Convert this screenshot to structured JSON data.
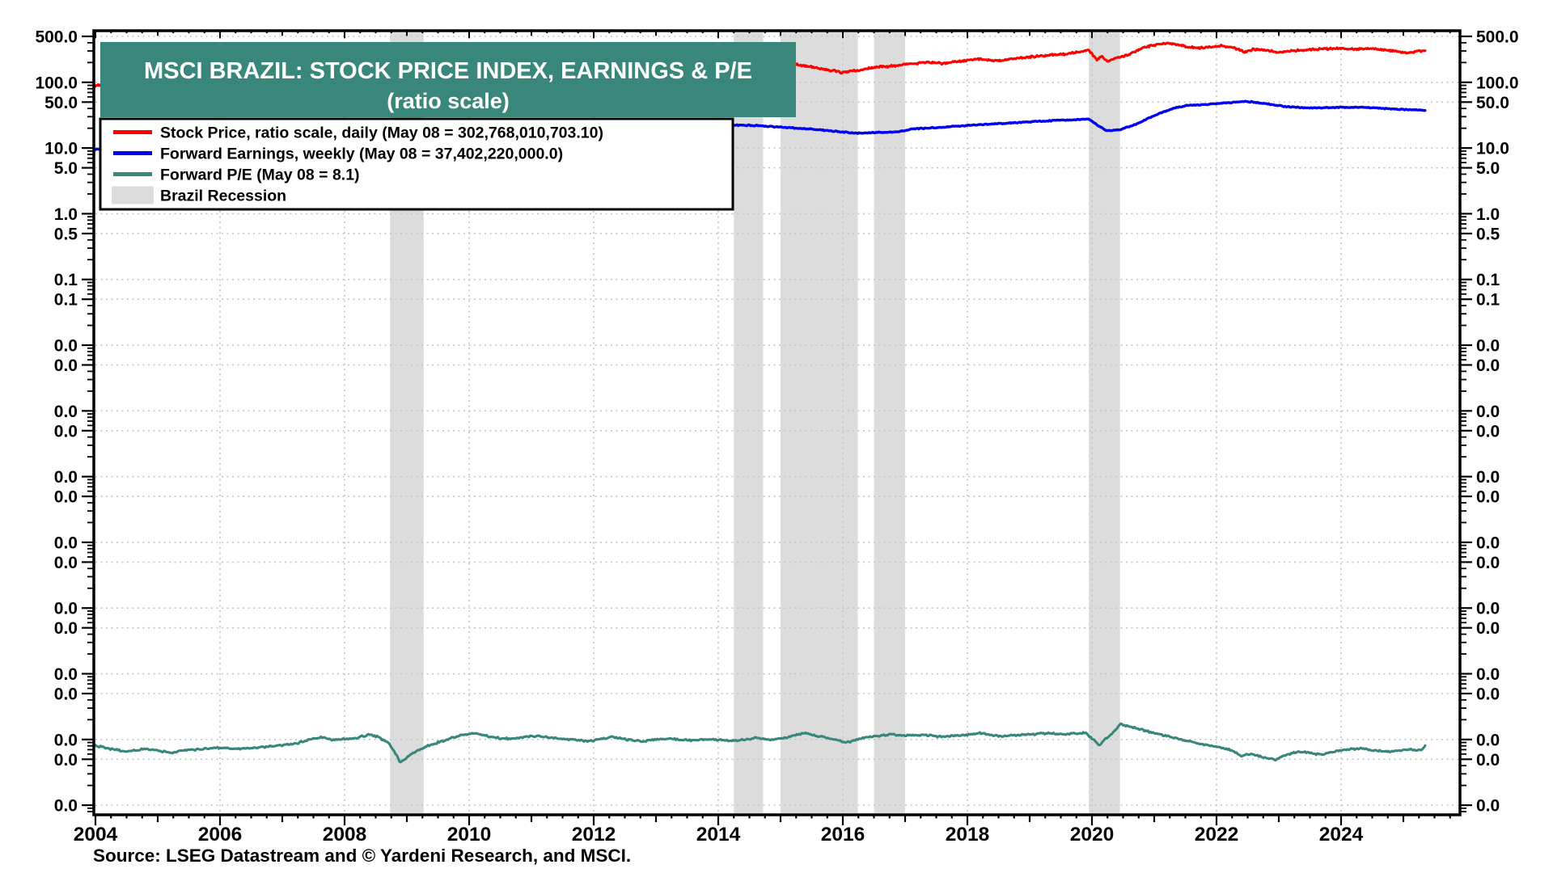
{
  "title": {
    "line1": "MSCI BRAZIL: STOCK PRICE INDEX, EARNINGS & P/E",
    "line2": "(ratio scale)"
  },
  "source_note": "Source: LSEG Datastream and © Yardeni Research, and MSCI.",
  "colors": {
    "title_bg": "#38877A",
    "title_text": "#FFFFFF",
    "stock_price": "#FF0000",
    "forward_earnings": "#0000EE",
    "forward_pe": "#38877A",
    "recession_band": "#DCDCDC",
    "gridline": "#C5C5C5",
    "frame": "#000000",
    "legend_bg": "#FFFFFF",
    "text": "#000000"
  },
  "legend": {
    "items": [
      {
        "type": "line",
        "color_key": "stock_price",
        "label": "Stock Price, ratio scale, daily (May 08 = 302,768,010,703.10)"
      },
      {
        "type": "line",
        "color_key": "forward_earnings",
        "label": "Forward Earnings, weekly (May 08 = 37,402,220,000.0)"
      },
      {
        "type": "line",
        "color_key": "forward_pe",
        "label": "Forward P/E (May 08 = 8.1)"
      },
      {
        "type": "band",
        "color_key": "recession_band",
        "label": "Brazil Recession"
      }
    ]
  },
  "chart_data": {
    "type": "line",
    "y_scale": "log",
    "grid": "dotted",
    "legend_position": "top-left",
    "x_range": [
      2004,
      2025.9
    ],
    "x_major_ticks": [
      "2004",
      "2006",
      "2008",
      "2010",
      "2012",
      "2014",
      "2016",
      "2018",
      "2020",
      "2022",
      "2024"
    ],
    "x_minor_tick_step": 0.25,
    "y_ticks": [
      {
        "value": 500,
        "label": "500.0"
      },
      {
        "value": 100,
        "label": "100.0"
      },
      {
        "value": 50,
        "label": "50.0"
      },
      {
        "value": 10,
        "label": "10.0"
      },
      {
        "value": 5,
        "label": "5.0"
      },
      {
        "value": 1,
        "label": "1.0"
      },
      {
        "value": 0.5,
        "label": "0.5"
      },
      {
        "value": 0.1,
        "label": "0.1"
      },
      {
        "value": 0.05,
        "label": "0.1"
      },
      {
        "value": 0.01,
        "label": "0.0"
      },
      {
        "value": 0.005,
        "label": "0.0"
      },
      {
        "value": 0.001,
        "label": "0.0"
      },
      {
        "value": 0.0005,
        "label": "0.0"
      },
      {
        "value": 0.0001,
        "label": "0.0"
      },
      {
        "value": 5e-05,
        "label": "0.0"
      },
      {
        "value": 1e-05,
        "label": "0.0"
      },
      {
        "value": 5e-06,
        "label": "0.0"
      },
      {
        "value": 1e-06,
        "label": "0.0"
      },
      {
        "value": 5e-07,
        "label": "0.0"
      },
      {
        "value": 1e-07,
        "label": "0.0"
      },
      {
        "value": 5e-08,
        "label": "0.0"
      },
      {
        "value": 1e-08,
        "label": "0.0"
      },
      {
        "value": 5e-09,
        "label": "0.0"
      },
      {
        "value": 1e-09,
        "label": "0.0"
      }
    ],
    "recession_bands": [
      [
        2008.73,
        2009.27
      ],
      [
        2014.25,
        2014.72
      ],
      [
        2015.0,
        2016.24
      ],
      [
        2016.5,
        2017.0
      ],
      [
        2019.95,
        2020.45
      ]
    ],
    "series": [
      {
        "name": "Stock Price",
        "key": "stock_price",
        "frequency": "daily",
        "last_date": "May 08",
        "last_value": 302768010703.1,
        "plot_multiplier": 1,
        "noise": 0.022,
        "step": 0.015,
        "points": [
          [
            2004.0,
            90
          ],
          [
            2004.5,
            100
          ],
          [
            2005.0,
            115
          ],
          [
            2005.5,
            135
          ],
          [
            2006.0,
            150
          ],
          [
            2006.5,
            165
          ],
          [
            2007.0,
            200
          ],
          [
            2007.5,
            240
          ],
          [
            2008.0,
            250
          ],
          [
            2008.4,
            270
          ],
          [
            2008.7,
            160
          ],
          [
            2008.85,
            88
          ],
          [
            2009.0,
            110
          ],
          [
            2009.5,
            170
          ],
          [
            2010.0,
            220
          ],
          [
            2010.5,
            230
          ],
          [
            2011.0,
            220
          ],
          [
            2011.5,
            195
          ],
          [
            2012.0,
            190
          ],
          [
            2012.5,
            180
          ],
          [
            2013.0,
            185
          ],
          [
            2013.5,
            175
          ],
          [
            2014.0,
            185
          ],
          [
            2014.5,
            175
          ],
          [
            2015.0,
            190
          ],
          [
            2015.31,
            185
          ],
          [
            2015.5,
            170
          ],
          [
            2015.8,
            152
          ],
          [
            2016.0,
            140
          ],
          [
            2016.2,
            150
          ],
          [
            2016.5,
            168
          ],
          [
            2016.8,
            178
          ],
          [
            2017.0,
            188
          ],
          [
            2017.3,
            200
          ],
          [
            2017.6,
            194
          ],
          [
            2018.0,
            215
          ],
          [
            2018.2,
            228
          ],
          [
            2018.5,
            212
          ],
          [
            2018.8,
            232
          ],
          [
            2019.0,
            243
          ],
          [
            2019.3,
            258
          ],
          [
            2019.6,
            272
          ],
          [
            2019.95,
            310
          ],
          [
            2020.08,
            218
          ],
          [
            2020.15,
            248
          ],
          [
            2020.25,
            212
          ],
          [
            2020.4,
            235
          ],
          [
            2020.6,
            262
          ],
          [
            2020.8,
            330
          ],
          [
            2021.0,
            368
          ],
          [
            2021.2,
            398
          ],
          [
            2021.35,
            378
          ],
          [
            2021.5,
            350
          ],
          [
            2021.7,
            330
          ],
          [
            2021.9,
            345
          ],
          [
            2022.1,
            360
          ],
          [
            2022.3,
            330
          ],
          [
            2022.45,
            288
          ],
          [
            2022.6,
            318
          ],
          [
            2022.75,
            308
          ],
          [
            2023.0,
            288
          ],
          [
            2023.25,
            303
          ],
          [
            2023.5,
            315
          ],
          [
            2023.75,
            323
          ],
          [
            2024.0,
            330
          ],
          [
            2024.25,
            318
          ],
          [
            2024.5,
            325
          ],
          [
            2024.7,
            310
          ],
          [
            2024.9,
            298
          ],
          [
            2025.05,
            278
          ],
          [
            2025.2,
            293
          ],
          [
            2025.35,
            302.77
          ]
        ]
      },
      {
        "name": "Forward Earnings",
        "key": "forward_earnings",
        "frequency": "weekly",
        "last_date": "May 08",
        "last_value": 37402220000.0,
        "plot_multiplier": 1,
        "noise": 0.011,
        "step": 0.02,
        "points": [
          [
            2004.0,
            9.5
          ],
          [
            2005.0,
            12
          ],
          [
            2006.0,
            14
          ],
          [
            2007.0,
            17
          ],
          [
            2008.0,
            22
          ],
          [
            2008.7,
            25
          ],
          [
            2009.2,
            19
          ],
          [
            2010.0,
            24
          ],
          [
            2011.0,
            27
          ],
          [
            2012.0,
            25
          ],
          [
            2013.0,
            23.5
          ],
          [
            2014.0,
            22.5
          ],
          [
            2014.36,
            22.2
          ],
          [
            2014.7,
            21.8
          ],
          [
            2015.0,
            20.8
          ],
          [
            2015.5,
            19.4
          ],
          [
            2016.0,
            17.5
          ],
          [
            2016.25,
            16.8
          ],
          [
            2016.5,
            17.2
          ],
          [
            2016.9,
            17.6
          ],
          [
            2017.1,
            19.5
          ],
          [
            2017.5,
            20.5
          ],
          [
            2018.0,
            22
          ],
          [
            2018.5,
            23.5
          ],
          [
            2019.0,
            25
          ],
          [
            2019.5,
            26.5
          ],
          [
            2019.95,
            27.5
          ],
          [
            2020.1,
            22
          ],
          [
            2020.25,
            18.2
          ],
          [
            2020.45,
            19
          ],
          [
            2020.7,
            23
          ],
          [
            2020.9,
            28
          ],
          [
            2021.1,
            34
          ],
          [
            2021.3,
            40
          ],
          [
            2021.5,
            44
          ],
          [
            2021.8,
            46
          ],
          [
            2022.0,
            47
          ],
          [
            2022.2,
            49
          ],
          [
            2022.45,
            51
          ],
          [
            2022.6,
            50
          ],
          [
            2022.8,
            47
          ],
          [
            2023.0,
            44
          ],
          [
            2023.2,
            42
          ],
          [
            2023.45,
            40.5
          ],
          [
            2023.7,
            41
          ],
          [
            2024.0,
            41.5
          ],
          [
            2024.3,
            42
          ],
          [
            2024.6,
            40.5
          ],
          [
            2024.8,
            39.5
          ],
          [
            2025.0,
            38.5
          ],
          [
            2025.2,
            38
          ],
          [
            2025.35,
            37.4
          ]
        ]
      },
      {
        "name": "Forward P/E",
        "key": "forward_pe",
        "frequency": "weekly",
        "last_date": "May 08",
        "last_value": 8.1,
        "plot_multiplier": 1e-09,
        "noise": 0.02,
        "step": 0.02,
        "points": [
          [
            2004.0,
            8.0
          ],
          [
            2004.25,
            7.2
          ],
          [
            2004.5,
            6.5
          ],
          [
            2004.75,
            7.1
          ],
          [
            2005.0,
            6.9
          ],
          [
            2005.2,
            6.2
          ],
          [
            2005.4,
            6.8
          ],
          [
            2005.7,
            7.1
          ],
          [
            2006.0,
            7.5
          ],
          [
            2006.3,
            7.2
          ],
          [
            2006.6,
            7.6
          ],
          [
            2006.9,
            8.0
          ],
          [
            2007.2,
            8.6
          ],
          [
            2007.5,
            10.3
          ],
          [
            2007.65,
            10.7
          ],
          [
            2007.8,
            9.8
          ],
          [
            2008.0,
            10.1
          ],
          [
            2008.2,
            10.5
          ],
          [
            2008.4,
            12.0
          ],
          [
            2008.55,
            10.8
          ],
          [
            2008.7,
            8.9
          ],
          [
            2008.82,
            6.0
          ],
          [
            2008.9,
            4.4
          ],
          [
            2009.0,
            5.4
          ],
          [
            2009.15,
            6.6
          ],
          [
            2009.3,
            7.8
          ],
          [
            2009.5,
            9.0
          ],
          [
            2009.7,
            10.4
          ],
          [
            2009.9,
            11.8
          ],
          [
            2010.1,
            12.3
          ],
          [
            2010.3,
            11.2
          ],
          [
            2010.5,
            10.5
          ],
          [
            2010.7,
            10.2
          ],
          [
            2010.9,
            10.9
          ],
          [
            2011.1,
            11.3
          ],
          [
            2011.3,
            10.7
          ],
          [
            2011.5,
            10.2
          ],
          [
            2011.7,
            9.8
          ],
          [
            2011.9,
            9.4
          ],
          [
            2012.1,
            10.0
          ],
          [
            2012.3,
            11.0
          ],
          [
            2012.45,
            10.3
          ],
          [
            2012.6,
            9.7
          ],
          [
            2012.8,
            9.4
          ],
          [
            2013.0,
            10.0
          ],
          [
            2013.2,
            10.4
          ],
          [
            2013.4,
            9.9
          ],
          [
            2013.6,
            9.6
          ],
          [
            2013.8,
            10.1
          ],
          [
            2014.0,
            9.9
          ],
          [
            2014.2,
            9.5
          ],
          [
            2014.4,
            9.9
          ],
          [
            2014.6,
            10.6
          ],
          [
            2014.8,
            10.0
          ],
          [
            2015.0,
            10.3
          ],
          [
            2015.2,
            11.3
          ],
          [
            2015.4,
            12.5
          ],
          [
            2015.55,
            11.4
          ],
          [
            2015.7,
            10.8
          ],
          [
            2015.9,
            10.0
          ],
          [
            2016.05,
            9.0
          ],
          [
            2016.2,
            9.8
          ],
          [
            2016.4,
            10.9
          ],
          [
            2016.6,
            11.5
          ],
          [
            2016.8,
            12.0
          ],
          [
            2017.0,
            11.4
          ],
          [
            2017.2,
            11.8
          ],
          [
            2017.4,
            11.4
          ],
          [
            2017.6,
            11.0
          ],
          [
            2017.8,
            11.4
          ],
          [
            2018.0,
            11.8
          ],
          [
            2018.2,
            12.7
          ],
          [
            2018.35,
            11.7
          ],
          [
            2018.5,
            11.2
          ],
          [
            2018.7,
            11.6
          ],
          [
            2018.9,
            11.9
          ],
          [
            2019.1,
            12.1
          ],
          [
            2019.3,
            12.4
          ],
          [
            2019.5,
            12.1
          ],
          [
            2019.7,
            12.3
          ],
          [
            2019.9,
            12.6
          ],
          [
            2020.05,
            9.4
          ],
          [
            2020.12,
            8.0
          ],
          [
            2020.22,
            10.4
          ],
          [
            2020.32,
            12.0
          ],
          [
            2020.45,
            17.5
          ],
          [
            2020.55,
            16.2
          ],
          [
            2020.7,
            14.8
          ],
          [
            2020.85,
            13.6
          ],
          [
            2021.0,
            12.6
          ],
          [
            2021.15,
            11.6
          ],
          [
            2021.3,
            10.7
          ],
          [
            2021.5,
            9.6
          ],
          [
            2021.7,
            8.8
          ],
          [
            2021.9,
            8.0
          ],
          [
            2022.1,
            7.5
          ],
          [
            2022.25,
            6.8
          ],
          [
            2022.4,
            5.6
          ],
          [
            2022.55,
            6.0
          ],
          [
            2022.7,
            5.6
          ],
          [
            2022.85,
            5.1
          ],
          [
            2022.95,
            4.9
          ],
          [
            2023.1,
            5.7
          ],
          [
            2023.25,
            6.3
          ],
          [
            2023.4,
            6.5
          ],
          [
            2023.55,
            6.1
          ],
          [
            2023.7,
            5.9
          ],
          [
            2023.85,
            6.5
          ],
          [
            2024.05,
            7.0
          ],
          [
            2024.2,
            7.2
          ],
          [
            2024.35,
            7.3
          ],
          [
            2024.5,
            6.9
          ],
          [
            2024.65,
            6.7
          ],
          [
            2024.8,
            6.5
          ],
          [
            2024.95,
            6.8
          ],
          [
            2025.1,
            7.1
          ],
          [
            2025.2,
            6.8
          ],
          [
            2025.3,
            7.0
          ],
          [
            2025.35,
            8.1
          ]
        ]
      }
    ]
  }
}
